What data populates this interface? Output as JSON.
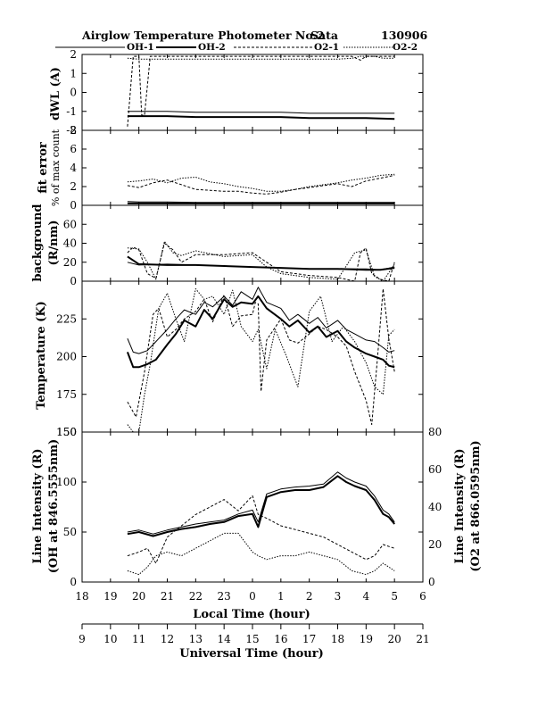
{
  "header": {
    "title": "Airglow Temperature Photometer No.2",
    "site": "Sata",
    "date": "130906"
  },
  "legend": [
    {
      "name": "OH-1",
      "style": "thin solid"
    },
    {
      "name": "OH-2",
      "style": "thick solid"
    },
    {
      "name": "O2-1",
      "style": "dashed"
    },
    {
      "name": "O2-2",
      "style": "dotted"
    }
  ],
  "axes": {
    "local_time_label": "Local Time (hour)",
    "universal_time_label": "Universal Time (hour)",
    "local_time_ticks": [
      "18",
      "19",
      "20",
      "21",
      "22",
      "23",
      "0",
      "1",
      "2",
      "3",
      "4",
      "5",
      "6"
    ],
    "universal_time_ticks": [
      "9",
      "10",
      "11",
      "12",
      "13",
      "14",
      "15",
      "16",
      "17",
      "18",
      "19",
      "20",
      "21"
    ]
  },
  "chart_data": [
    {
      "type": "line",
      "panel": "dwl",
      "ylabel": "dWL (A)",
      "ylim": [
        -2,
        2
      ],
      "yticks": [
        "2",
        "1",
        "0",
        "-1",
        "-2"
      ],
      "series": [
        {
          "name": "OH-1",
          "x": [
            10.6,
            11,
            12,
            13,
            14,
            15,
            16,
            17,
            18,
            19,
            20
          ],
          "y": [
            -1.0,
            -1.0,
            -1.0,
            -1.05,
            -1.05,
            -1.05,
            -1.05,
            -1.1,
            -1.1,
            -1.1,
            -1.1
          ]
        },
        {
          "name": "OH-2",
          "x": [
            10.6,
            11,
            12,
            13,
            14,
            15,
            16,
            17,
            18,
            19,
            20
          ],
          "y": [
            -1.25,
            -1.25,
            -1.25,
            -1.3,
            -1.3,
            -1.3,
            -1.3,
            -1.35,
            -1.35,
            -1.35,
            -1.4
          ]
        },
        {
          "name": "O2-1",
          "x": [
            10.6,
            10.8,
            11,
            11.1,
            11.2,
            11.4,
            11.7,
            12,
            13,
            14,
            15,
            16,
            17,
            18,
            18.5,
            18.8,
            19,
            19.5,
            20
          ],
          "y": [
            -1.8,
            1.9,
            1.9,
            -1.2,
            -1.2,
            1.9,
            1.9,
            1.9,
            1.9,
            1.9,
            1.9,
            1.9,
            1.9,
            1.9,
            1.9,
            1.7,
            1.9,
            1.9,
            1.9
          ]
        },
        {
          "name": "O2-2",
          "x": [
            10.6,
            11,
            12,
            13,
            14,
            15,
            16,
            17,
            18,
            18.5,
            18.8,
            19.3,
            19.6,
            20
          ],
          "y": [
            1.8,
            1.75,
            1.75,
            1.75,
            1.75,
            1.75,
            1.75,
            1.75,
            1.75,
            1.8,
            1.9,
            1.9,
            1.8,
            1.8
          ]
        }
      ]
    },
    {
      "type": "line",
      "panel": "fit_error",
      "ylabel": "fit error",
      "ylabel2": "% of max count",
      "ylim": [
        0,
        8
      ],
      "yticks": [
        "8",
        "6",
        "4",
        "2",
        "0"
      ],
      "series": [
        {
          "name": "OH-1",
          "x": [
            10.6,
            11,
            12,
            13,
            14,
            15,
            16,
            17,
            18,
            19,
            20
          ],
          "y": [
            0.4,
            0.35,
            0.35,
            0.3,
            0.3,
            0.3,
            0.3,
            0.3,
            0.3,
            0.3,
            0.3
          ]
        },
        {
          "name": "OH-2",
          "x": [
            10.6,
            11,
            12,
            13,
            14,
            15,
            16,
            17,
            18,
            19,
            20
          ],
          "y": [
            0.2,
            0.2,
            0.2,
            0.2,
            0.2,
            0.2,
            0.2,
            0.2,
            0.2,
            0.2,
            0.2
          ]
        },
        {
          "name": "O2-1",
          "x": [
            10.6,
            11,
            11.5,
            12,
            12.5,
            13,
            13.5,
            14,
            14.5,
            15,
            15.5,
            16,
            16.5,
            17,
            17.5,
            18,
            18.5,
            19,
            19.5,
            20
          ],
          "y": [
            2.1,
            1.9,
            2.4,
            2.7,
            2.2,
            1.7,
            1.6,
            1.5,
            1.5,
            1.3,
            1.2,
            1.4,
            1.7,
            1.9,
            2.1,
            2.3,
            2.0,
            2.6,
            2.9,
            3.2
          ]
        },
        {
          "name": "O2-2",
          "x": [
            10.6,
            11,
            11.5,
            12,
            12.5,
            13,
            13.5,
            14,
            14.5,
            15,
            15.5,
            16,
            16.5,
            17,
            17.5,
            18,
            18.5,
            19,
            19.5,
            20
          ],
          "y": [
            2.5,
            2.6,
            2.8,
            2.4,
            2.9,
            3.0,
            2.5,
            2.3,
            2.0,
            1.8,
            1.5,
            1.5,
            1.7,
            2.0,
            2.2,
            2.4,
            2.7,
            2.9,
            3.2,
            3.3
          ]
        }
      ]
    },
    {
      "type": "line",
      "panel": "background",
      "ylabel": "background",
      "ylabel2": "(R/nm)",
      "ylim": [
        0,
        80
      ],
      "yticks": [
        "60",
        "40",
        "20",
        "0"
      ],
      "series": [
        {
          "name": "OH-1",
          "x": [
            10.6,
            11,
            12,
            13,
            14,
            15,
            16,
            17,
            18,
            19,
            19.5,
            20
          ],
          "y": [
            20,
            17,
            18,
            17,
            16,
            15,
            14,
            13,
            13,
            13,
            12,
            15
          ]
        },
        {
          "name": "OH-2",
          "x": [
            10.6,
            11,
            12,
            13,
            14,
            15,
            16,
            17,
            18,
            19,
            19.5,
            20
          ],
          "y": [
            26,
            18,
            17,
            17,
            16,
            15,
            14,
            13,
            13,
            12,
            12,
            14
          ]
        },
        {
          "name": "O2-1",
          "x": [
            10.6,
            10.8,
            11,
            11.3,
            11.6,
            11.9,
            12.2,
            12.5,
            13,
            14,
            15,
            15.5,
            16,
            17,
            18,
            18.6,
            18.8,
            19,
            19.2,
            19.5,
            19.8,
            20
          ],
          "y": [
            30,
            36,
            33,
            8,
            3,
            40,
            33,
            20,
            28,
            28,
            30,
            20,
            10,
            6,
            4,
            0,
            30,
            35,
            8,
            2,
            0,
            20
          ]
        },
        {
          "name": "O2-2",
          "x": [
            10.6,
            11,
            11.3,
            11.6,
            11.9,
            12.2,
            12.5,
            13,
            14,
            15,
            15.5,
            16,
            17,
            18,
            18.6,
            19,
            19.3,
            19.6,
            20
          ],
          "y": [
            35,
            34,
            20,
            2,
            42,
            30,
            27,
            32,
            26,
            28,
            15,
            8,
            4,
            2,
            30,
            33,
            5,
            0,
            18
          ]
        }
      ]
    },
    {
      "type": "line",
      "panel": "temperature",
      "ylabel": "Temperature (K)",
      "ylim": [
        150,
        250
      ],
      "yticks": [
        "225",
        "200",
        "175",
        "150"
      ],
      "series": [
        {
          "name": "OH-1",
          "x": [
            10.6,
            10.8,
            11,
            11.3,
            11.6,
            12,
            12.3,
            12.6,
            13,
            13.3,
            13.6,
            14,
            14.3,
            14.6,
            15,
            15.2,
            15.5,
            16,
            16.3,
            16.6,
            17,
            17.3,
            17.6,
            18,
            18.3,
            18.6,
            19,
            19.3,
            19.6,
            19.8,
            20
          ],
          "y": [
            212,
            203,
            202,
            204,
            210,
            218,
            225,
            231,
            228,
            236,
            233,
            240,
            234,
            243,
            238,
            246,
            236,
            232,
            224,
            228,
            222,
            226,
            219,
            224,
            218,
            215,
            211,
            210,
            206,
            203,
            204
          ]
        },
        {
          "name": "OH-2",
          "x": [
            10.6,
            10.8,
            11,
            11.3,
            11.6,
            12,
            12.3,
            12.6,
            13,
            13.3,
            13.6,
            14,
            14.3,
            14.6,
            15,
            15.2,
            15.5,
            16,
            16.3,
            16.6,
            17,
            17.3,
            17.6,
            18,
            18.3,
            18.6,
            19,
            19.3,
            19.6,
            19.8,
            20
          ],
          "y": [
            203,
            193,
            193,
            195,
            198,
            208,
            215,
            224,
            220,
            231,
            225,
            238,
            233,
            236,
            235,
            240,
            232,
            225,
            220,
            224,
            216,
            220,
            213,
            217,
            210,
            206,
            202,
            200,
            198,
            194,
            193
          ]
        },
        {
          "name": "O2-1",
          "x": [
            10.6,
            10.9,
            11.2,
            11.5,
            11.7,
            12,
            12.3,
            12.6,
            13,
            13.3,
            13.6,
            14,
            14.3,
            14.6,
            15,
            15.1,
            15.2,
            15.3,
            15.5,
            16,
            16.3,
            16.6,
            17,
            17.3,
            17.6,
            18,
            18.3,
            18.6,
            19,
            19.2,
            19.4,
            19.6,
            19.8,
            20
          ],
          "y": [
            170,
            160,
            190,
            228,
            232,
            213,
            218,
            225,
            230,
            238,
            223,
            241,
            220,
            227,
            228,
            236,
            235,
            177,
            211,
            225,
            211,
            209,
            215,
            220,
            218,
            213,
            207,
            190,
            171,
            155,
            199,
            245,
            212,
            190
          ]
        },
        {
          "name": "O2-2",
          "x": [
            10.6,
            10.8,
            11,
            11.2,
            11.4,
            11.7,
            12,
            12.3,
            12.6,
            13,
            13.3,
            13.6,
            14,
            14.3,
            14.6,
            15,
            15.2,
            15.5,
            15.8,
            16.2,
            16.6,
            17,
            17.4,
            17.8,
            18.2,
            18.6,
            19,
            19.3,
            19.6,
            19.8,
            20
          ],
          "y": [
            155,
            150,
            150,
            175,
            195,
            232,
            242,
            225,
            210,
            245,
            238,
            240,
            228,
            244,
            220,
            210,
            218,
            192,
            218,
            200,
            180,
            230,
            240,
            210,
            220,
            210,
            196,
            180,
            175,
            214,
            218
          ]
        }
      ]
    },
    {
      "type": "line",
      "panel": "intensity",
      "ylabel": "Line Intensity (R)",
      "ylabel2": "(OH at 846.5555nm)",
      "y2label": "Line Intensity (R)",
      "y2label2": "(O2 at 866.0595nm)",
      "ylim": [
        0,
        150
      ],
      "yticks": [
        "150",
        "100",
        "50",
        "0"
      ],
      "y2lim": [
        0,
        80
      ],
      "y2ticks": [
        "80",
        "60",
        "40",
        "20",
        "0"
      ],
      "series": [
        {
          "name": "OH-1",
          "x": [
            10.6,
            11,
            11.5,
            12,
            12.5,
            13,
            13.5,
            14,
            14.5,
            15,
            15.2,
            15.5,
            16,
            16.5,
            17,
            17.5,
            18,
            18.3,
            18.6,
            19,
            19.3,
            19.6,
            19.8,
            20
          ],
          "y": [
            50,
            52,
            48,
            52,
            55,
            58,
            60,
            62,
            68,
            72,
            60,
            88,
            93,
            95,
            96,
            98,
            110,
            104,
            100,
            96,
            86,
            72,
            68,
            60
          ]
        },
        {
          "name": "OH-2",
          "x": [
            10.6,
            11,
            11.5,
            12,
            12.5,
            13,
            13.5,
            14,
            14.5,
            15,
            15.2,
            15.5,
            16,
            16.5,
            17,
            17.5,
            18,
            18.3,
            18.6,
            19,
            19.3,
            19.6,
            19.8,
            20
          ],
          "y": [
            48,
            50,
            46,
            50,
            53,
            55,
            58,
            60,
            66,
            68,
            55,
            85,
            90,
            92,
            92,
            95,
            106,
            100,
            96,
            92,
            82,
            68,
            65,
            58
          ]
        },
        {
          "name": "O2-1",
          "x": [
            10.6,
            11,
            11.3,
            11.6,
            12,
            12.5,
            13,
            13.5,
            14,
            14.5,
            15,
            15.2,
            15.5,
            16,
            16.5,
            17,
            17.5,
            18,
            18.5,
            19,
            19.3,
            19.6,
            20
          ],
          "y": [
            14,
            16,
            18,
            10,
            24,
            30,
            36,
            40,
            44,
            38,
            46,
            36,
            34,
            30,
            28,
            26,
            24,
            20,
            16,
            12,
            14,
            20,
            18
          ]
        },
        {
          "name": "O2-2",
          "x": [
            10.6,
            11,
            11.3,
            11.6,
            12,
            12.5,
            13,
            13.5,
            14,
            14.5,
            15,
            15.2,
            15.5,
            16,
            16.5,
            17,
            17.5,
            18,
            18.5,
            19,
            19.3,
            19.6,
            20
          ],
          "y": [
            6,
            4,
            8,
            14,
            16,
            14,
            18,
            22,
            26,
            26,
            16,
            14,
            12,
            14,
            14,
            16,
            14,
            12,
            6,
            4,
            6,
            10,
            6
          ]
        }
      ]
    }
  ]
}
